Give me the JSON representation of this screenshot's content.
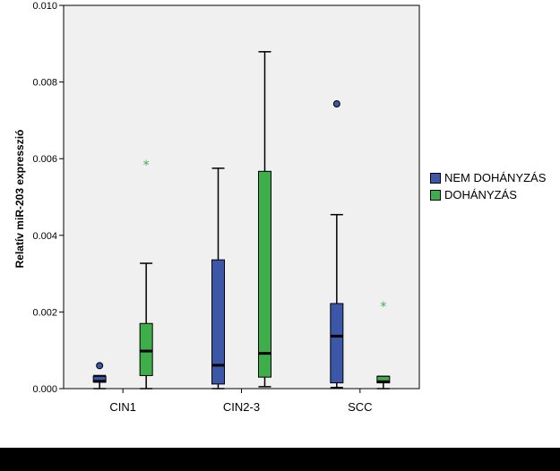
{
  "chart_data": {
    "type": "boxplot",
    "title": "",
    "xlabel": "",
    "ylabel": "Relatív miR-203 expresszió",
    "ylim": [
      0,
      0.01
    ],
    "yticks": [
      "0.000",
      "0.002",
      "0.004",
      "0.006",
      "0.008",
      "0.010"
    ],
    "categories": [
      "CIN1",
      "CIN2-3",
      "SCC"
    ],
    "legend_position": "right",
    "grid": false,
    "plot_background": "#f0f0f0",
    "series": [
      {
        "name": "NEM DOHÁNYZÁS",
        "color": "#3c56a8",
        "boxes": [
          {
            "min": 0.0,
            "q1": 0.00017,
            "median": 0.00019,
            "q3": 0.00032,
            "max": 0.00034,
            "outliers": [
              0.0006
            ],
            "extremes": []
          },
          {
            "min": 0.0,
            "q1": 0.00012,
            "median": 0.00061,
            "q3": 0.00336,
            "max": 0.00575,
            "outliers": [],
            "extremes": []
          },
          {
            "min": 3e-05,
            "q1": 0.00015,
            "median": 0.00137,
            "q3": 0.00222,
            "max": 0.00454,
            "outliers": [
              0.00743
            ],
            "extremes": []
          }
        ]
      },
      {
        "name": "DOHÁNYZÁS",
        "color": "#3dae4a",
        "boxes": [
          {
            "min": 0.0,
            "q1": 0.00034,
            "median": 0.00098,
            "q3": 0.0017,
            "max": 0.00327,
            "outliers": [],
            "extremes": [
              0.00586
            ]
          },
          {
            "min": 5e-05,
            "q1": 0.0003,
            "median": 0.00092,
            "q3": 0.00567,
            "max": 0.00879,
            "outliers": [],
            "extremes": []
          },
          {
            "min": 0.0,
            "q1": 0.00015,
            "median": 0.00018,
            "q3": 0.00032,
            "max": 0.00032,
            "outliers": [],
            "extremes": [
              0.00217
            ]
          }
        ]
      }
    ]
  }
}
